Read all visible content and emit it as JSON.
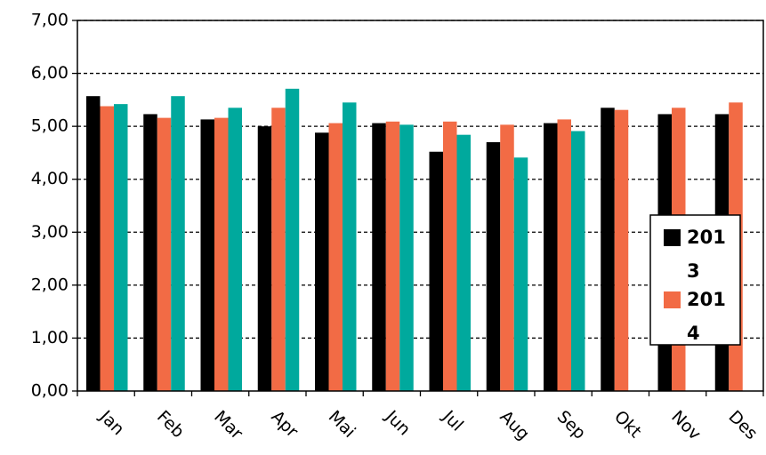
{
  "chart_data": {
    "type": "bar",
    "categories": [
      "Jan",
      "Feb",
      "Mar",
      "Apr",
      "Mai",
      "Jun",
      "Jul",
      "Aug",
      "Sep",
      "Okt",
      "Nov",
      "Des"
    ],
    "series": [
      {
        "name": "2013",
        "color": "#000000",
        "values": [
          5.57,
          5.23,
          5.13,
          5.0,
          4.88,
          5.06,
          4.52,
          4.7,
          5.06,
          5.35,
          5.23,
          5.23
        ]
      },
      {
        "name": "2014",
        "color": "#f26b45",
        "values": [
          5.38,
          5.16,
          5.16,
          5.35,
          5.06,
          5.09,
          5.09,
          5.03,
          5.13,
          5.31,
          5.35,
          5.45
        ]
      },
      {
        "color": "#00a99d",
        "values": [
          5.42,
          5.57,
          5.35,
          5.71,
          5.45,
          5.03,
          4.84,
          4.41,
          4.91,
          null,
          null,
          null
        ]
      }
    ],
    "ylim": [
      0,
      7
    ],
    "yticks": [
      {
        "value": 0,
        "label": "0,00"
      },
      {
        "value": 1,
        "label": "1,00"
      },
      {
        "value": 2,
        "label": "2,00"
      },
      {
        "value": 3,
        "label": "3,00"
      },
      {
        "value": 4,
        "label": "4,00"
      },
      {
        "value": 5,
        "label": "5,00"
      },
      {
        "value": 6,
        "label": "6,00"
      },
      {
        "value": 7,
        "label": "7,00"
      }
    ],
    "grid": true
  }
}
